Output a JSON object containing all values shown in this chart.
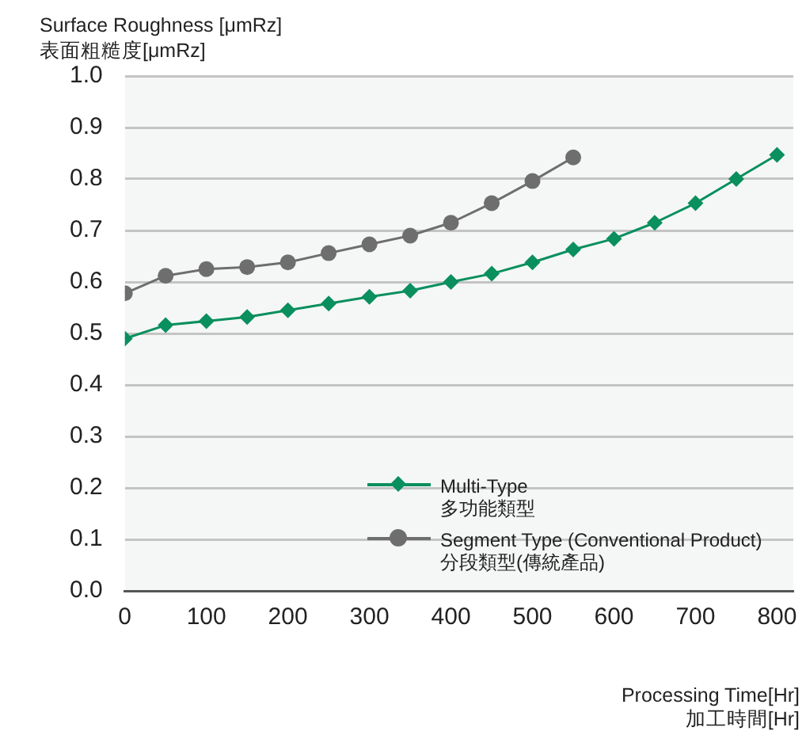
{
  "chart_data": {
    "type": "line",
    "ylabel": "Surface Roughness [μmRz]\n表面粗糙度[μmRz]",
    "xlabel": "Processing Time[Hr]\n加工時間[Hr]",
    "xlim": [
      0,
      820
    ],
    "xticks": [
      0,
      100,
      200,
      300,
      400,
      500,
      600,
      700,
      800
    ],
    "ylim": [
      0,
      1
    ],
    "yticks": [
      {
        "value": 0,
        "label": "0.0"
      },
      0.1,
      0.2,
      0.3,
      0.4,
      0.5,
      0.6,
      0.7,
      0.8,
      0.9,
      {
        "value": 1,
        "label": "1.0"
      }
    ],
    "grid": "y",
    "legend": "center",
    "line_style": "solid",
    "series": [
      {
        "name": "Multi-Type\n多功能類型",
        "color": "#0a8f5e",
        "marker": "diamond",
        "x": [
          0,
          50,
          100,
          150,
          200,
          250,
          300,
          350,
          400,
          450,
          500,
          550,
          600,
          650,
          700,
          750,
          800
        ],
        "values": [
          0.49,
          0.516,
          0.524,
          0.532,
          0.545,
          0.558,
          0.571,
          0.583,
          0.6,
          0.616,
          0.638,
          0.663,
          0.684,
          0.715,
          0.753,
          0.8,
          0.847
        ]
      },
      {
        "name": "Segment Type (Conventional Product)\n分段類型(傳統產品)",
        "color": "#6e6e6e",
        "marker": "circle",
        "x": [
          0,
          50,
          100,
          150,
          200,
          250,
          300,
          350,
          400,
          450,
          500,
          550
        ],
        "values": [
          0.578,
          0.612,
          0.625,
          0.629,
          0.638,
          0.656,
          0.673,
          0.69,
          0.715,
          0.753,
          0.796,
          0.842
        ]
      }
    ]
  }
}
